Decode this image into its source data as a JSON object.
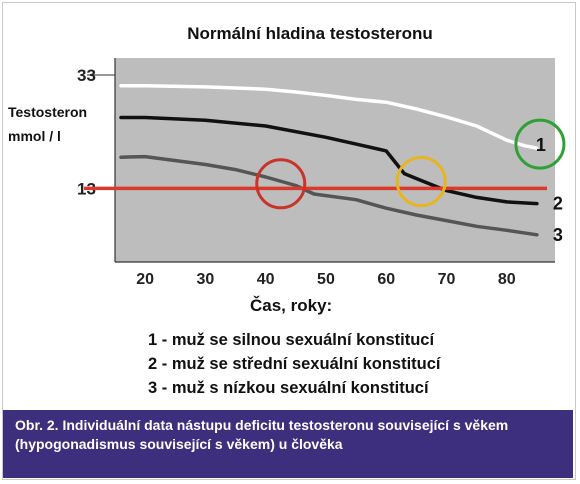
{
  "chart_data": {
    "type": "line",
    "title": "Normální hladina testosteronu",
    "ylabel_lines": [
      "Testosteron",
      "mmol / l"
    ],
    "xlabel": "Čas, roky:",
    "xlim": [
      15,
      88
    ],
    "ylim": [
      0,
      36
    ],
    "xticks": [
      20,
      30,
      40,
      50,
      60,
      70,
      80
    ],
    "yticks": [
      13,
      33
    ],
    "reference_line": {
      "y": 13,
      "color": "#d93a2b"
    },
    "series": [
      {
        "name": "1",
        "color": "#ffffff",
        "points": [
          [
            16,
            31.1
          ],
          [
            20,
            31.1
          ],
          [
            30,
            30.9
          ],
          [
            40,
            30.5
          ],
          [
            45,
            30.0
          ],
          [
            50,
            29.4
          ],
          [
            55,
            28.7
          ],
          [
            60,
            28.2
          ],
          [
            65,
            27.0
          ],
          [
            70,
            25.6
          ],
          [
            75,
            24.0
          ],
          [
            80,
            21.5
          ],
          [
            83,
            20.5
          ],
          [
            85,
            20.1
          ]
        ]
      },
      {
        "name": "2",
        "color": "#111111",
        "points": [
          [
            16,
            25.5
          ],
          [
            20,
            25.5
          ],
          [
            30,
            25.0
          ],
          [
            40,
            24.0
          ],
          [
            50,
            22.0
          ],
          [
            55,
            20.8
          ],
          [
            60,
            19.6
          ],
          [
            63,
            15.6
          ],
          [
            66,
            14.3
          ],
          [
            70,
            12.6
          ],
          [
            75,
            11.4
          ],
          [
            80,
            10.6
          ],
          [
            85,
            10.3
          ]
        ]
      },
      {
        "name": "3",
        "color": "#555555",
        "points": [
          [
            16,
            18.5
          ],
          [
            20,
            18.6
          ],
          [
            30,
            17.2
          ],
          [
            35,
            16.3
          ],
          [
            40,
            15.0
          ],
          [
            45,
            13.5
          ],
          [
            48,
            12.0
          ],
          [
            55,
            11.0
          ],
          [
            60,
            9.5
          ],
          [
            65,
            8.3
          ],
          [
            70,
            7.3
          ],
          [
            75,
            6.3
          ],
          [
            80,
            5.6
          ],
          [
            85,
            4.8
          ]
        ]
      }
    ],
    "series_labels": [
      "1",
      "2",
      "3"
    ],
    "circles": [
      {
        "color": "#c8332a",
        "x": 42.5,
        "y": 13.8
      },
      {
        "color": "#e8b420",
        "x": 65.8,
        "y": 14.2
      },
      {
        "color": "#2fa035",
        "x": 85.5,
        "y": 20.8
      }
    ],
    "colors": {
      "plot_background": "#bdbdbd",
      "caption_background": "#3e2f7e"
    }
  },
  "legend": [
    "1 - muž se silnou sexuální konstitucí",
    "2 - muž se střední sexuální konstitucí",
    "3 - muž s nízkou sexuální konstitucí"
  ],
  "caption": "Obr. 2. Individuální data nástupu deficitu testosteronu související s věkem (hypogonadismus související s věkem) u člověka"
}
